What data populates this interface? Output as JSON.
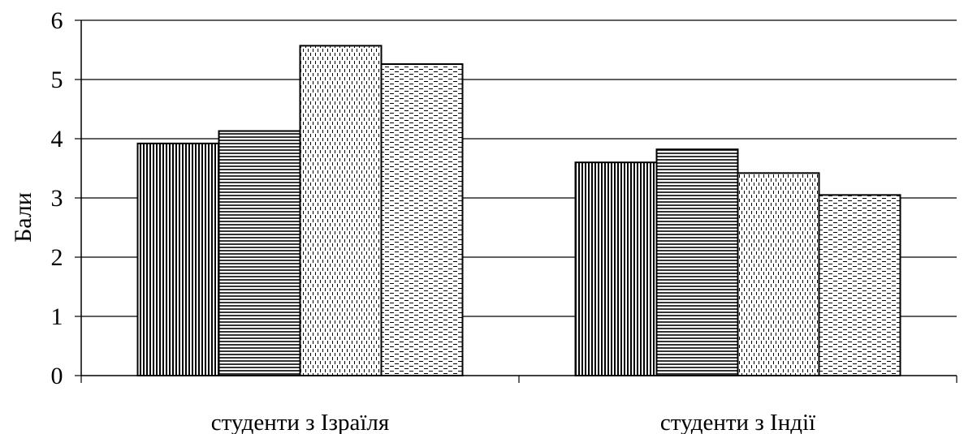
{
  "chart_data": {
    "type": "bar",
    "categories": [
      "студенти з Ізраїля",
      "студенти з Індії"
    ],
    "series": [
      {
        "values": [
          3.92,
          3.6
        ],
        "pattern": "vertical-lines"
      },
      {
        "values": [
          4.13,
          3.82
        ],
        "pattern": "horizontal-lines"
      },
      {
        "values": [
          5.57,
          3.42
        ],
        "pattern": "vertical-dashes"
      },
      {
        "values": [
          5.26,
          3.05
        ],
        "pattern": "horizontal-dashes"
      }
    ],
    "title": "",
    "xlabel": "",
    "ylabel": "Бали",
    "ylim": [
      0,
      6
    ],
    "yticks": [
      "0",
      "1",
      "2",
      "3",
      "4",
      "5",
      "6"
    ],
    "grid": true,
    "legend": "none"
  }
}
